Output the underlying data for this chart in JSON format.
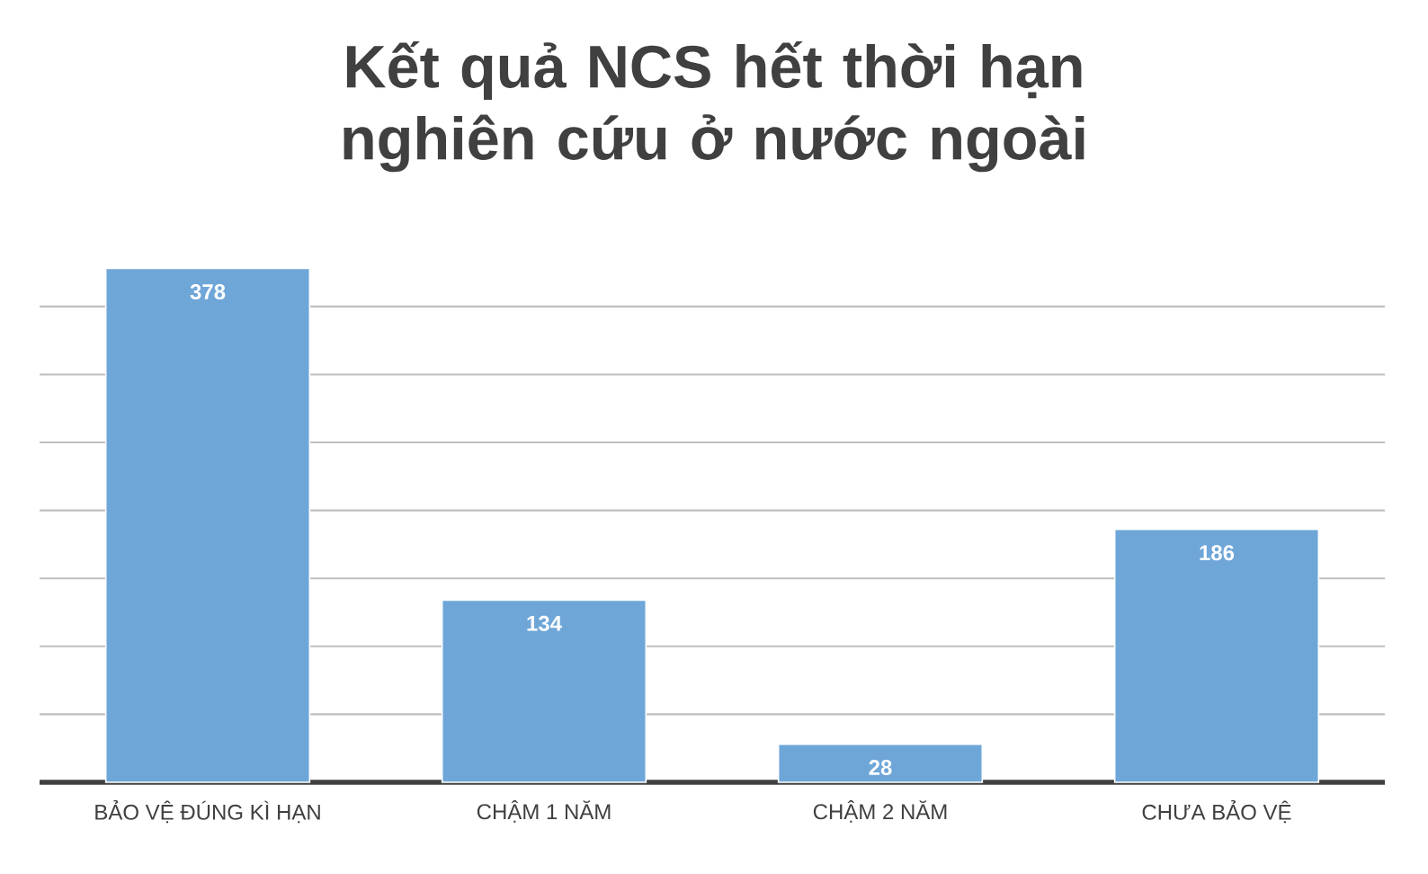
{
  "chart_data": {
    "type": "bar",
    "title": "Kết quả NCS hết thời hạn nghiên cứu ở nước ngoài",
    "categories": [
      "BẢO VỆ ĐÚNG KÌ HẠN",
      "CHẬM 1 NĂM",
      "CHẬM 2 NĂM",
      "CHƯA BẢO VỆ"
    ],
    "values": [
      378,
      134,
      28,
      186
    ],
    "color": "#6fa6d8",
    "data_labels": true,
    "grid": "y",
    "tick_labels": "x"
  }
}
